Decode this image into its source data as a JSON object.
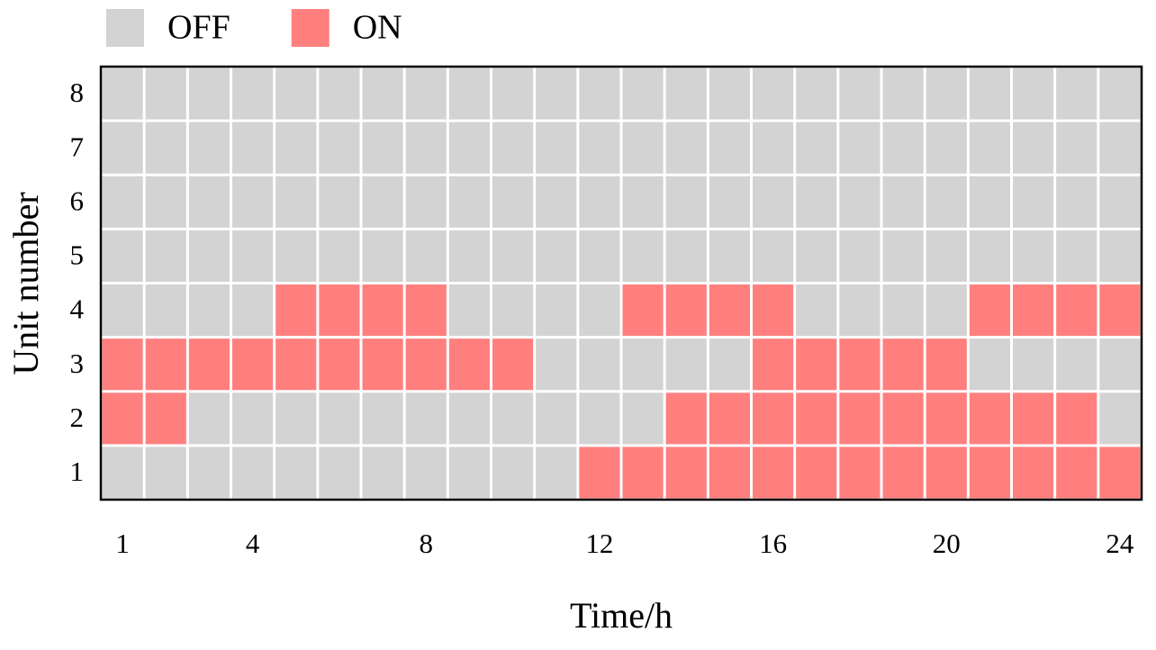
{
  "chart_data": {
    "type": "heatmap",
    "x_label": "Time/h",
    "y_label": "Unit number",
    "x_categories": [
      1,
      null,
      null,
      4,
      null,
      null,
      null,
      8,
      null,
      null,
      null,
      12,
      null,
      null,
      null,
      16,
      null,
      null,
      null,
      20,
      null,
      null,
      null,
      24
    ],
    "y_categories": [
      1,
      2,
      3,
      4,
      5,
      6,
      7,
      8
    ],
    "legend": [
      {
        "name": "OFF",
        "color": "#d3d3d3"
      },
      {
        "name": "ON",
        "color": "#ff7f7f"
      }
    ],
    "values": [
      [
        0,
        0,
        0,
        0,
        0,
        0,
        0,
        0,
        0,
        0,
        0,
        1,
        1,
        1,
        1,
        1,
        1,
        1,
        1,
        1,
        1,
        1,
        1,
        1
      ],
      [
        1,
        1,
        0,
        0,
        0,
        0,
        0,
        0,
        0,
        0,
        0,
        0,
        0,
        1,
        1,
        1,
        1,
        1,
        1,
        1,
        1,
        1,
        1,
        0
      ],
      [
        1,
        1,
        1,
        1,
        1,
        1,
        1,
        1,
        1,
        1,
        0,
        0,
        0,
        0,
        0,
        1,
        1,
        1,
        1,
        1,
        0,
        0,
        0,
        0
      ],
      [
        0,
        0,
        0,
        0,
        1,
        1,
        1,
        1,
        0,
        0,
        0,
        0,
        1,
        1,
        1,
        1,
        0,
        0,
        0,
        0,
        1,
        1,
        1,
        1
      ],
      [
        0,
        0,
        0,
        0,
        0,
        0,
        0,
        0,
        0,
        0,
        0,
        0,
        0,
        0,
        0,
        0,
        0,
        0,
        0,
        0,
        0,
        0,
        0,
        0
      ],
      [
        0,
        0,
        0,
        0,
        0,
        0,
        0,
        0,
        0,
        0,
        0,
        0,
        0,
        0,
        0,
        0,
        0,
        0,
        0,
        0,
        0,
        0,
        0,
        0
      ],
      [
        0,
        0,
        0,
        0,
        0,
        0,
        0,
        0,
        0,
        0,
        0,
        0,
        0,
        0,
        0,
        0,
        0,
        0,
        0,
        0,
        0,
        0,
        0,
        0
      ],
      [
        0,
        0,
        0,
        0,
        0,
        0,
        0,
        0,
        0,
        0,
        0,
        0,
        0,
        0,
        0,
        0,
        0,
        0,
        0,
        0,
        0,
        0,
        0,
        0
      ]
    ]
  }
}
